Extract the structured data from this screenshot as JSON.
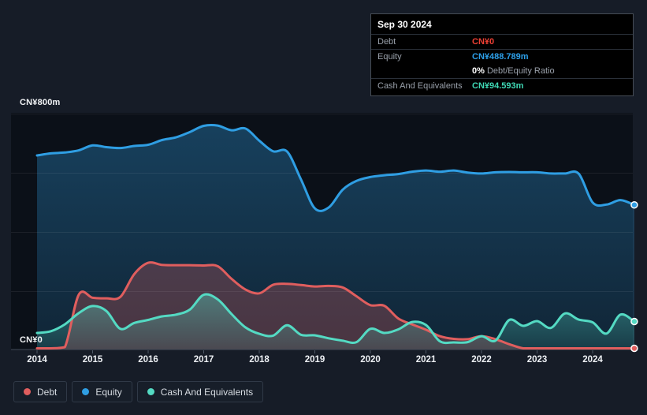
{
  "tooltip": {
    "date": "Sep 30 2024",
    "debt_label": "Debt",
    "debt_value": "CN¥0",
    "equity_label": "Equity",
    "equity_value": "CN¥488.789m",
    "ratio_value": "0%",
    "ratio_label": "Debt/Equity Ratio",
    "cash_label": "Cash And Equivalents",
    "cash_value": "CN¥94.593m"
  },
  "colors": {
    "background": "#161c27",
    "plot_background": "#0b1018",
    "debt": "#e05e5e",
    "equity": "#2f9ee3",
    "cash": "#54dac3",
    "tooltip_debt_text": "#ee4034",
    "tooltip_equity_text": "#2da0ea",
    "tooltip_cash_text": "#3fd9b5"
  },
  "chart_data": {
    "type": "area",
    "x": [
      2014,
      2014.25,
      2014.5,
      2014.75,
      2015,
      2015.25,
      2015.5,
      2015.75,
      2016,
      2016.25,
      2016.5,
      2016.75,
      2017,
      2017.25,
      2017.5,
      2017.75,
      2018,
      2018.25,
      2018.5,
      2018.75,
      2019,
      2019.25,
      2019.5,
      2019.75,
      2020,
      2020.25,
      2020.5,
      2020.75,
      2021,
      2021.25,
      2021.5,
      2021.75,
      2022,
      2022.25,
      2022.5,
      2022.75,
      2023,
      2023.25,
      2023.5,
      2023.75,
      2024,
      2024.25,
      2024.5,
      2024.75
    ],
    "series": [
      {
        "name": "Debt",
        "color": "#e05e5e",
        "values": [
          0,
          3,
          8,
          185,
          175,
          173,
          178,
          255,
          293,
          286,
          285,
          285,
          284,
          282,
          239,
          203,
          190,
          219,
          222,
          218,
          213,
          215,
          210,
          180,
          150,
          148,
          105,
          85,
          67,
          45,
          36,
          35,
          45,
          35,
          18,
          0,
          0,
          0,
          0,
          0,
          0,
          0,
          0,
          0
        ]
      },
      {
        "name": "Equity",
        "color": "#2f9ee3",
        "values": [
          656,
          663,
          666,
          673,
          690,
          684,
          681,
          688,
          692,
          708,
          717,
          735,
          756,
          757,
          741,
          747,
          706,
          670,
          669,
          575,
          477,
          480,
          540,
          570,
          583,
          589,
          593,
          601,
          605,
          601,
          605,
          598,
          595,
          599,
          600,
          599,
          599,
          595,
          595,
          594,
          497,
          490,
          505,
          488.789
        ]
      },
      {
        "name": "Cash And Equivalents",
        "color": "#54dac3",
        "values": [
          56,
          62,
          85,
          123,
          147,
          130,
          70,
          90,
          100,
          112,
          118,
          135,
          185,
          170,
          120,
          75,
          53,
          47,
          82,
          50,
          48,
          38,
          30,
          25,
          70,
          56,
          68,
          93,
          83,
          28,
          24,
          25,
          45,
          30,
          100,
          80,
          96,
          73,
          122,
          101,
          92,
          54,
          118,
          94.593
        ]
      }
    ],
    "y_axis": {
      "min": 0,
      "max": 800,
      "unit": "CN¥m",
      "top_label": "CN¥800m",
      "zero_label": "CN¥0",
      "gridline_values": [
        200,
        400,
        600,
        800
      ]
    },
    "x_ticks": [
      "2014",
      "2015",
      "2016",
      "2017",
      "2018",
      "2019",
      "2020",
      "2021",
      "2022",
      "2023",
      "2024"
    ],
    "legend_position": "bottom-left",
    "grid": true
  }
}
